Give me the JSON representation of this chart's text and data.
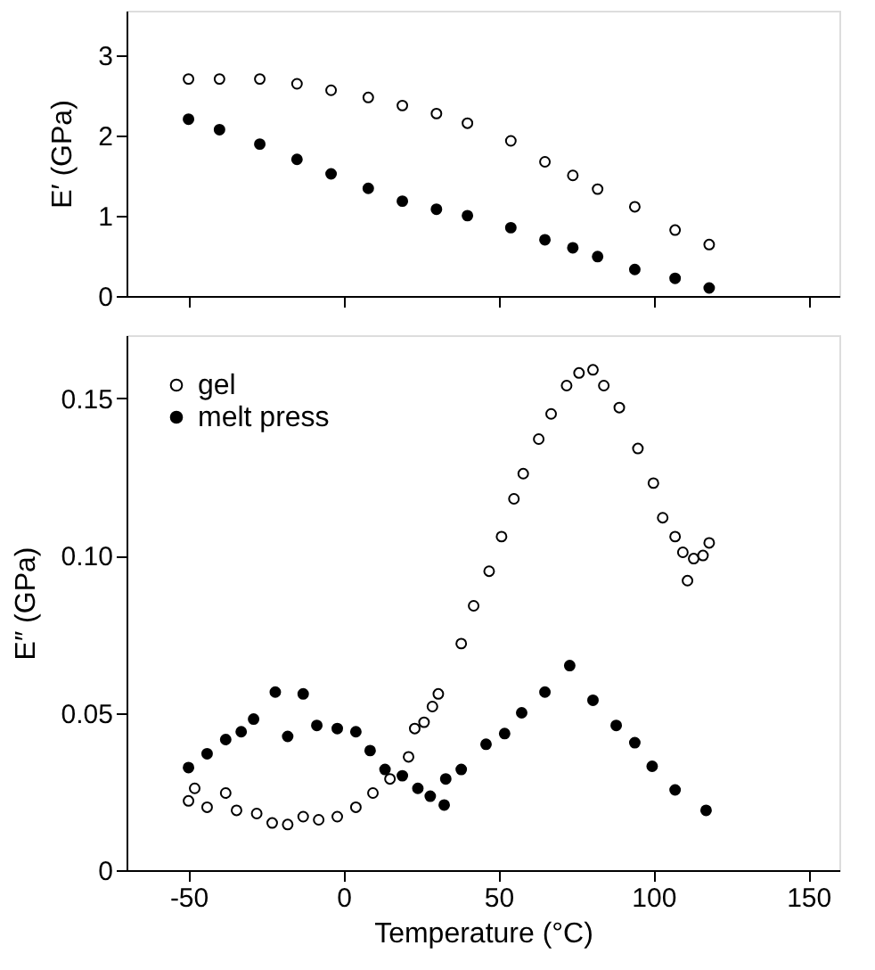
{
  "chart_data": [
    {
      "type": "scatter",
      "ylabel": "E′  (GPa)",
      "xlim": [
        -70,
        160
      ],
      "xticks": [
        -50,
        0,
        50,
        100,
        150
      ],
      "ylim": [
        0,
        3.55
      ],
      "yticks": [
        0,
        1,
        2,
        3
      ],
      "tick_labels": "y",
      "marker": "circle",
      "grid": false,
      "legend": false,
      "series": [
        {
          "color": "#ffffff",
          "x": [
            -50,
            -40,
            -27,
            -15,
            -4,
            8,
            19,
            30,
            40,
            54,
            65,
            74,
            82,
            94,
            107,
            118
          ],
          "values": [
            2.7,
            2.7,
            2.7,
            2.64,
            2.56,
            2.47,
            2.37,
            2.27,
            2.15,
            1.93,
            1.67,
            1.5,
            1.33,
            1.11,
            0.82,
            0.64
          ]
        },
        {
          "color": "#000000",
          "x": [
            -50,
            -40,
            -27,
            -15,
            -4,
            8,
            19,
            30,
            40,
            54,
            65,
            74,
            82,
            94,
            107,
            118
          ],
          "values": [
            2.2,
            2.07,
            1.89,
            1.7,
            1.52,
            1.34,
            1.18,
            1.08,
            1.0,
            0.85,
            0.7,
            0.6,
            0.49,
            0.33,
            0.22,
            0.1
          ]
        }
      ]
    },
    {
      "type": "scatter",
      "xlabel": "Temperature (°C)",
      "ylabel": "E″  (GPa)",
      "xlim": [
        -70,
        160
      ],
      "xticks": [
        -50,
        0,
        50,
        100,
        150
      ],
      "ylim": [
        0,
        0.17
      ],
      "yticks": [
        0,
        {
          "value": 0.05,
          "label": "0.05"
        },
        {
          "value": 0.1,
          "label": "0.10"
        },
        {
          "value": 0.15,
          "label": "0.15"
        }
      ],
      "marker": "circle",
      "grid": false,
      "legend": "top left",
      "series": [
        {
          "name": "gel",
          "color": "#ffffff",
          "x": [
            -50,
            -48,
            -44,
            -38,
            -34.5,
            -28,
            -23,
            -18,
            -13,
            -8,
            -2,
            4,
            9.5,
            15,
            21,
            23,
            26,
            28.7,
            30.6,
            38,
            42,
            47,
            51,
            55,
            58,
            63,
            67,
            72,
            76,
            80.5,
            84,
            89,
            95,
            100,
            103,
            107,
            109.5,
            111,
            113,
            116,
            118
          ],
          "values": [
            0.022,
            0.026,
            0.02,
            0.0245,
            0.019,
            0.018,
            0.015,
            0.0145,
            0.017,
            0.016,
            0.017,
            0.02,
            0.0245,
            0.029,
            0.036,
            0.045,
            0.047,
            0.052,
            0.056,
            0.072,
            0.084,
            0.095,
            0.106,
            0.118,
            0.126,
            0.137,
            0.145,
            0.154,
            0.158,
            0.159,
            0.154,
            0.147,
            0.134,
            0.123,
            0.112,
            0.106,
            0.101,
            0.092,
            0.099,
            0.1,
            0.104
          ]
        },
        {
          "name": "melt press",
          "color": "#000000",
          "x": [
            -50,
            -44,
            -38,
            -33,
            -29,
            -22,
            -18,
            -13,
            -8.6,
            -2,
            4,
            8.6,
            13.4,
            19,
            24,
            28,
            32.5,
            33,
            38,
            46,
            52,
            57.5,
            65,
            73,
            80.5,
            88,
            94,
            99.6,
            107,
            117
          ],
          "values": [
            0.0326,
            0.037,
            0.0415,
            0.044,
            0.048,
            0.0566,
            0.0425,
            0.056,
            0.046,
            0.045,
            0.044,
            0.038,
            0.032,
            0.03,
            0.026,
            0.0235,
            0.0207,
            0.029,
            0.032,
            0.04,
            0.0434,
            0.05,
            0.0566,
            0.065,
            0.054,
            0.046,
            0.0405,
            0.033,
            0.0255,
            0.019
          ]
        }
      ]
    }
  ]
}
